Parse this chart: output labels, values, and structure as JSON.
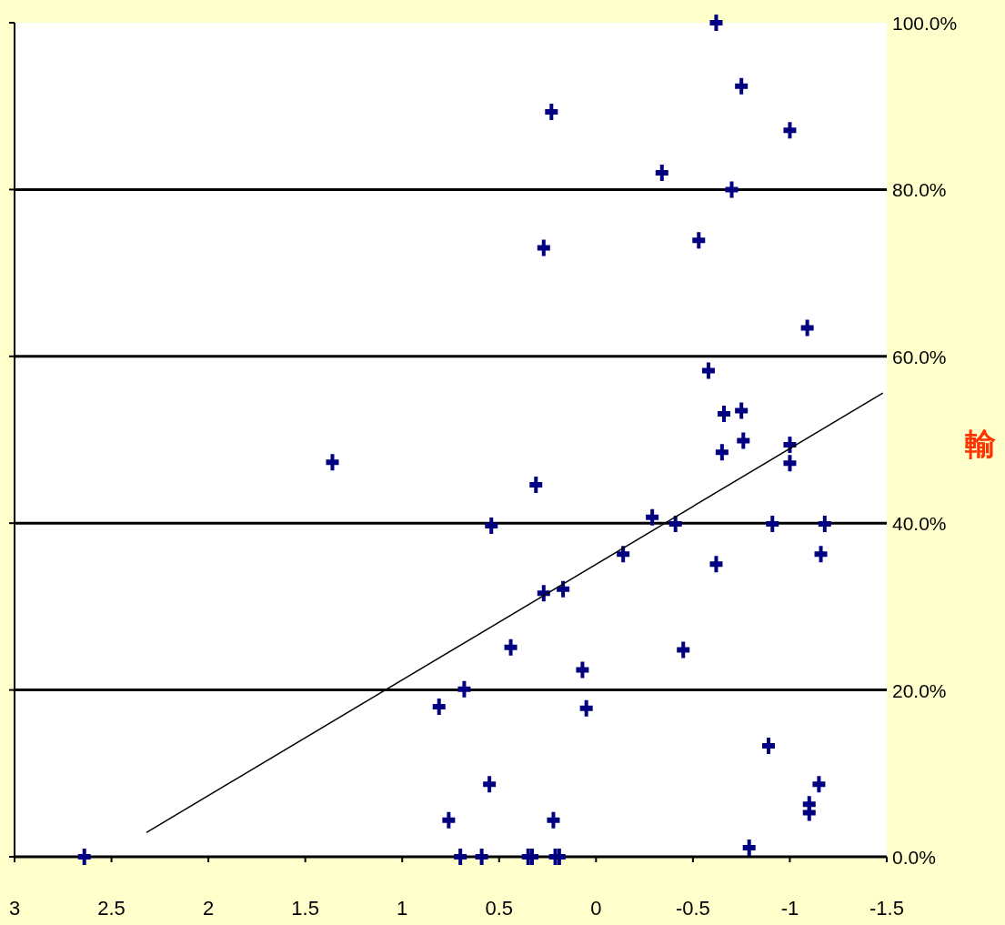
{
  "chart_data": {
    "type": "scatter",
    "ylabel": "輸",
    "xlim": [
      3,
      -1.5
    ],
    "xticks": [
      3,
      2.5,
      2,
      1.5,
      1,
      0.5,
      0,
      -0.5,
      -1,
      -1.5
    ],
    "ylim": [
      0,
      100
    ],
    "yticks": [
      {
        "value": 0,
        "label": "0.0%"
      },
      {
        "value": 20,
        "label": "20.0%"
      },
      {
        "value": 40,
        "label": "40.0%"
      },
      {
        "value": 60,
        "label": "60.0%"
      },
      {
        "value": 80,
        "label": "80.0%"
      },
      {
        "value": 100,
        "label": "100.0%"
      }
    ],
    "grid": "y",
    "legend": false,
    "marker": "cross",
    "series": [
      {
        "color": "#000080",
        "x": [
          2.64,
          1.36,
          0.81,
          0.76,
          0.7,
          0.68,
          0.59,
          0.55,
          0.54,
          0.44,
          0.35,
          0.33,
          0.31,
          0.27,
          0.27,
          0.23,
          0.22,
          0.21,
          0.19,
          0.17,
          0.07,
          0.05,
          -0.14,
          -0.29,
          -0.34,
          -0.41,
          -0.45,
          -0.53,
          -0.58,
          -0.62,
          -0.62,
          -0.65,
          -0.66,
          -0.7,
          -0.75,
          -0.75,
          -0.76,
          -0.79,
          -0.89,
          -0.91,
          -1.0,
          -1.0,
          -1.0,
          -1.09,
          -1.1,
          -1.1,
          -1.15,
          -1.16,
          -1.18
        ],
        "values": [
          0,
          47.3,
          18.0,
          4.4,
          0,
          20.1,
          0,
          8.7,
          39.7,
          25.1,
          0,
          0,
          44.6,
          73.0,
          31.6,
          89.3,
          4.4,
          0,
          0,
          32.1,
          22.4,
          17.8,
          36.3,
          40.7,
          82.0,
          39.9,
          24.8,
          73.9,
          58.3,
          100,
          35.1,
          48.5,
          53.1,
          80.0,
          92.4,
          53.5,
          49.9,
          1.1,
          13.3,
          39.9,
          87.1,
          49.4,
          47.2,
          63.4,
          6.3,
          5.3,
          8.7,
          36.3,
          39.9
        ]
      },
      {
        "type": "line",
        "color": "#000000",
        "marker": "none",
        "x": [
          2.32,
          -1.48
        ],
        "values": [
          2.9,
          55.6
        ]
      }
    ]
  }
}
